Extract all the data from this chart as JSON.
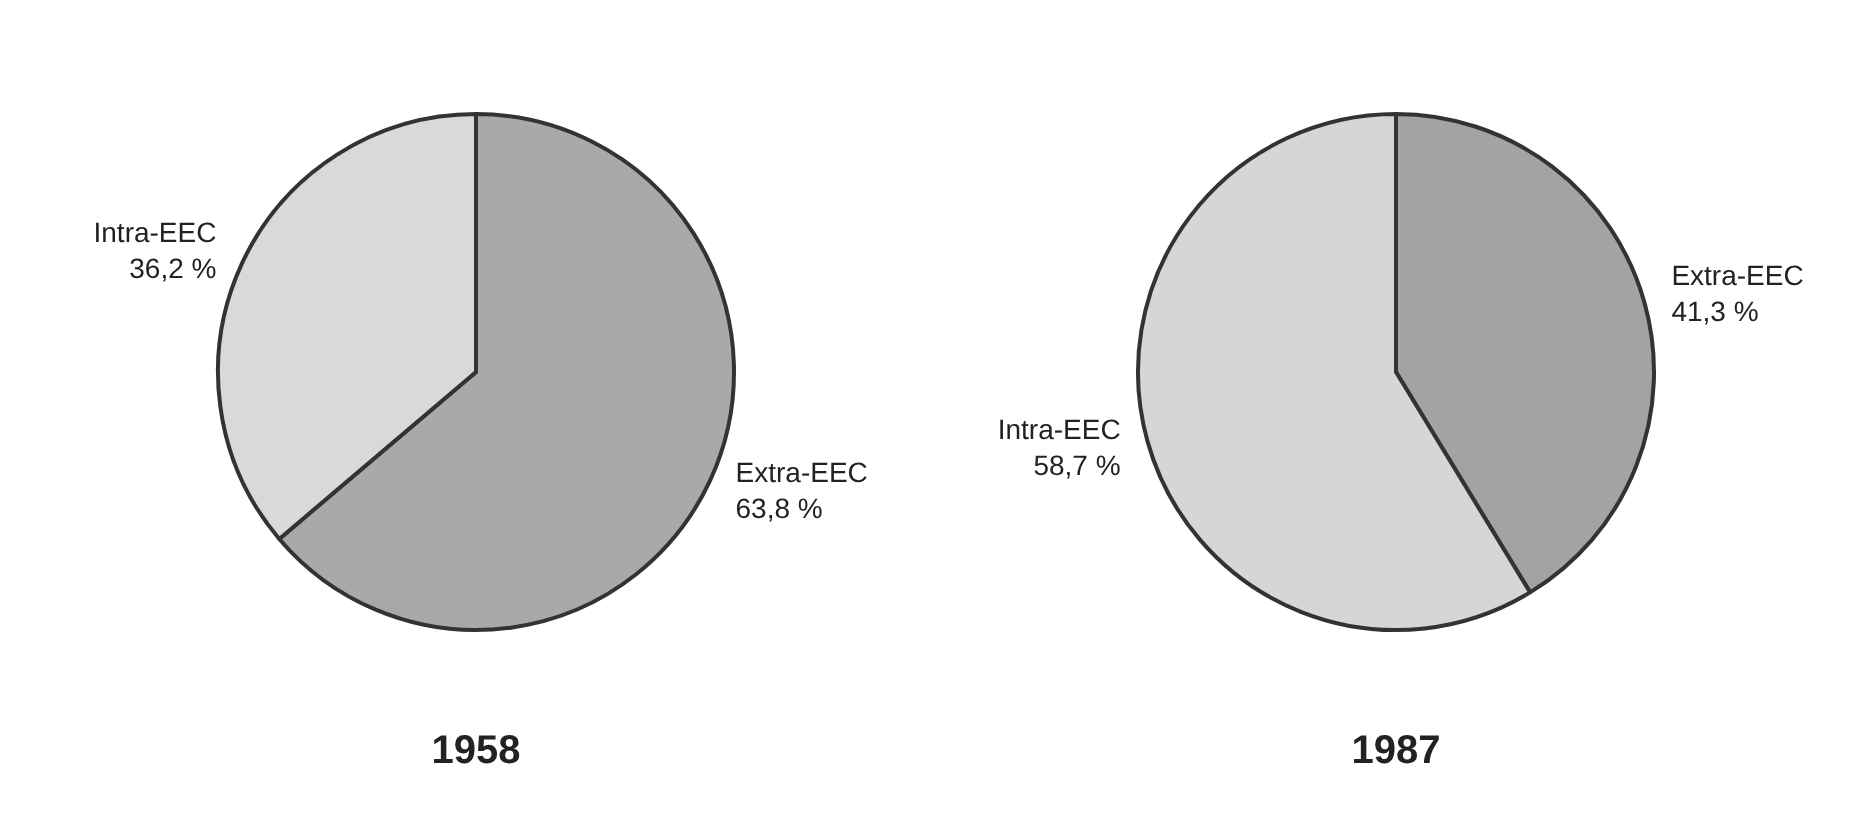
{
  "chart_data": [
    {
      "type": "pie",
      "title": "1958",
      "categories": [
        "Extra-EEC",
        "Intra-EEC"
      ],
      "values": [
        63.8,
        36.2
      ],
      "colors": [
        "#a9a9a9",
        "#d9d9d9"
      ],
      "value_labels": [
        "63,8 %",
        "36,2 %"
      ],
      "legend": false
    },
    {
      "type": "pie",
      "title": "1987",
      "categories": [
        "Extra-EEC",
        "Intra-EEC"
      ],
      "values": [
        41.3,
        58.7
      ],
      "colors": [
        "#a3a3a3",
        "#d6d6d6"
      ],
      "value_labels": [
        "41,3 %",
        "58,7 %"
      ],
      "legend": false
    }
  ]
}
